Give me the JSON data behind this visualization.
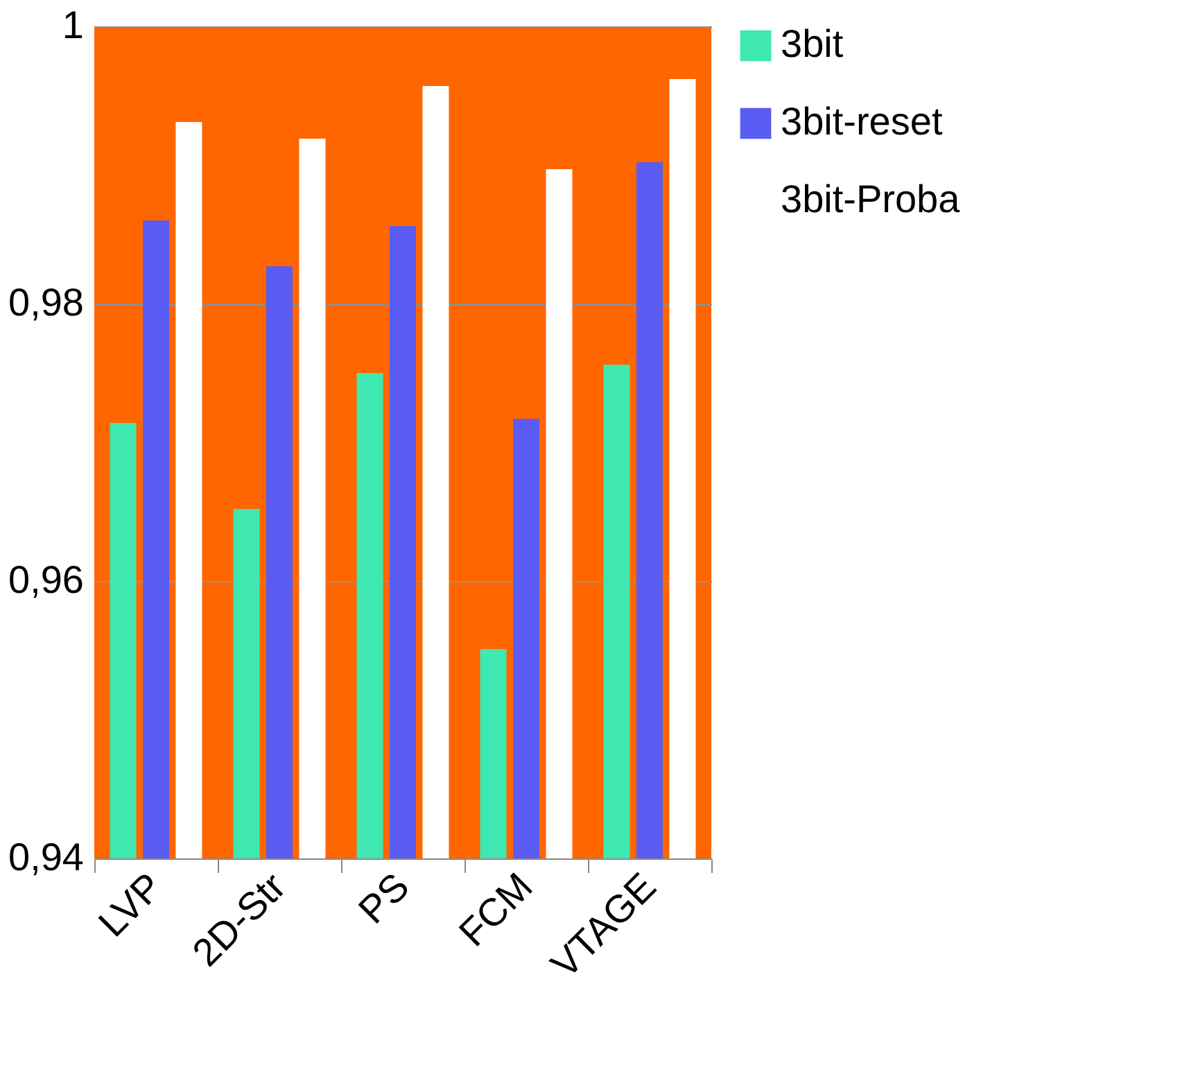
{
  "chart_data": {
    "type": "bar",
    "categories": [
      "LVP",
      "2D-Str",
      "PS",
      "FCM",
      "VTAGE"
    ],
    "series": [
      {
        "name": "3bit",
        "color": "#3fe8b0",
        "values": [
          0.9714,
          0.9652,
          0.975,
          0.9551,
          0.9756
        ]
      },
      {
        "name": "3bit-reset",
        "color": "#5a5cf2",
        "values": [
          0.986,
          0.9827,
          0.9856,
          0.9717,
          0.9902
        ]
      },
      {
        "name": "3bit-Proba",
        "color": "#ffffff",
        "values": [
          0.9931,
          0.9919,
          0.9957,
          0.9897,
          0.9962
        ]
      }
    ],
    "ylim": [
      0.94,
      1
    ],
    "yticks": [
      {
        "value": 0.94,
        "label": "0,94"
      },
      {
        "value": 0.96,
        "label": "0,96"
      },
      {
        "value": 0.98,
        "label": "0,98"
      },
      {
        "value": 1,
        "label": "1"
      }
    ],
    "grid": "y",
    "legend": "right"
  }
}
